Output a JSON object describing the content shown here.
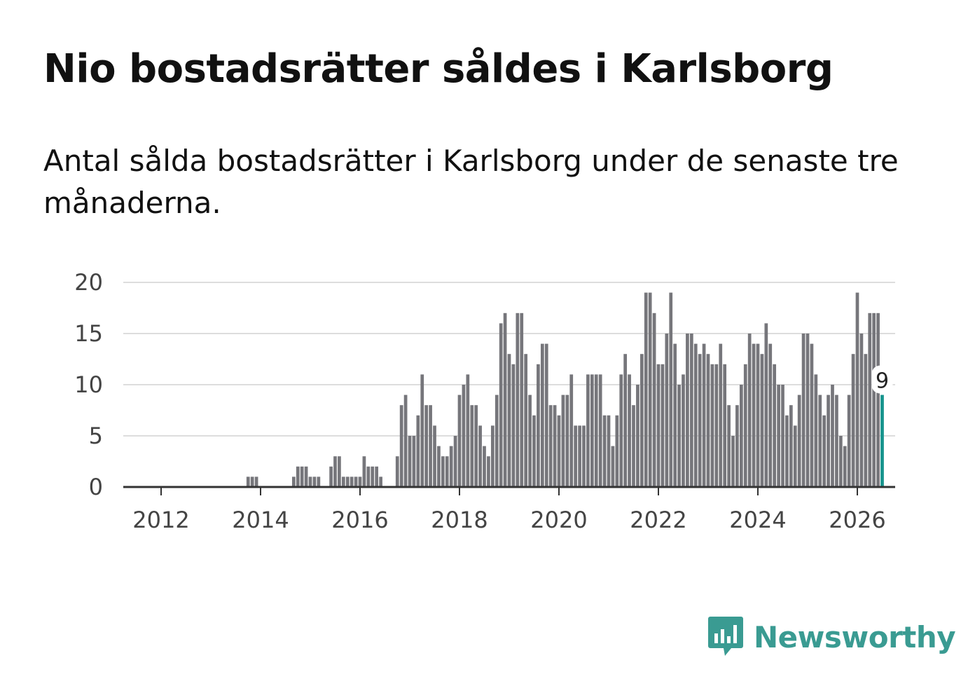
{
  "header": {
    "title": "Nio bostadsrätter såldes i Karlsborg",
    "subtitle": "Antal sålda bostadsrätter i Karlsborg under de senaste tre månaderna."
  },
  "brand": {
    "name": "Newsworthy",
    "color": "#3a9b92"
  },
  "chart_data": {
    "type": "bar",
    "title": "Nio bostadsrätter såldes i Karlsborg",
    "subtitle": "Antal sålda bostadsrätter i Karlsborg under de senaste tre månaderna.",
    "xlabel": "",
    "ylabel": "",
    "ylim": [
      0,
      20
    ],
    "yticks": [
      0,
      5,
      10,
      15,
      20
    ],
    "xticks": [
      "2012",
      "2014",
      "2016",
      "2018",
      "2020",
      "2022",
      "2024",
      "2026"
    ],
    "grid": true,
    "start": "2011-10",
    "frequency": "monthly",
    "bar_color": "#76767b",
    "highlight_color": "#16948d",
    "highlight": {
      "label": "9",
      "value": 9
    },
    "values": [
      0,
      0,
      0,
      0,
      0,
      0,
      0,
      0,
      0,
      0,
      0,
      0,
      0,
      0,
      0,
      0,
      0,
      0,
      0,
      0,
      0,
      0,
      0,
      0,
      1,
      1,
      1,
      0,
      0,
      0,
      0,
      0,
      0,
      0,
      0,
      1,
      2,
      2,
      2,
      1,
      1,
      1,
      0,
      0,
      2,
      3,
      3,
      1,
      1,
      1,
      1,
      1,
      3,
      2,
      2,
      2,
      1,
      0,
      0,
      0,
      3,
      8,
      9,
      5,
      5,
      7,
      11,
      8,
      8,
      6,
      4,
      3,
      3,
      4,
      5,
      9,
      10,
      11,
      8,
      8,
      6,
      4,
      3,
      6,
      9,
      16,
      17,
      13,
      12,
      17,
      17,
      13,
      9,
      7,
      12,
      14,
      14,
      8,
      8,
      7,
      9,
      9,
      11,
      6,
      6,
      6,
      11,
      11,
      11,
      11,
      7,
      7,
      4,
      7,
      11,
      13,
      11,
      8,
      10,
      13,
      19,
      19,
      17,
      12,
      12,
      15,
      19,
      14,
      10,
      11,
      15,
      15,
      14,
      13,
      14,
      13,
      12,
      12,
      14,
      12,
      8,
      5,
      8,
      10,
      12,
      15,
      14,
      14,
      13,
      16,
      14,
      12,
      10,
      10,
      7,
      8,
      6,
      9,
      15,
      15,
      14,
      11,
      9,
      7,
      9,
      10,
      9,
      5,
      4,
      9,
      13,
      19,
      15,
      13,
      17,
      17,
      17,
      9
    ]
  }
}
